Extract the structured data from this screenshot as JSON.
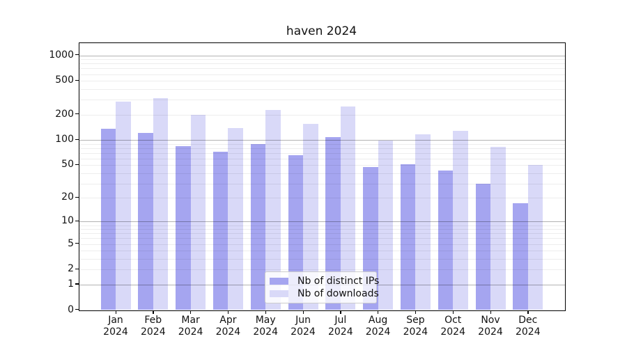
{
  "title": "haven 2024",
  "legend": {
    "items": [
      {
        "label": "Nb of distinct IPs",
        "color": "#a5a5f0"
      },
      {
        "label": "Nb of downloads",
        "color": "#d9d9f8"
      }
    ]
  },
  "chart_data": {
    "type": "bar",
    "title": "haven 2024",
    "categories": [
      "Jan",
      "Feb",
      "Mar",
      "Apr",
      "May",
      "Jun",
      "Jul",
      "Aug",
      "Sep",
      "Oct",
      "Nov",
      "Dec"
    ],
    "year_label": "2024",
    "series": [
      {
        "name": "Nb of distinct IPs",
        "color": "#a5a5f0",
        "values": [
          136,
          120,
          84,
          72,
          89,
          66,
          107,
          47,
          51,
          43,
          30,
          17
        ]
      },
      {
        "name": "Nb of downloads",
        "color": "#d9d9f8",
        "values": [
          282,
          312,
          200,
          138,
          225,
          156,
          249,
          98,
          117,
          129,
          83,
          50
        ]
      }
    ],
    "y_scale": "log1p",
    "ylim": [
      0,
      1000
    ],
    "y_ticks": [
      0,
      1,
      2,
      5,
      10,
      20,
      50,
      100,
      200,
      500,
      1000
    ],
    "y_major_gridlines": [
      1,
      10,
      100,
      1000
    ],
    "y_minor_gridlines": [
      2,
      3,
      4,
      5,
      6,
      7,
      8,
      9,
      20,
      30,
      40,
      50,
      60,
      70,
      80,
      90,
      200,
      300,
      400,
      500,
      600,
      700,
      800,
      900
    ],
    "grid": "both",
    "legend_position": "lower center"
  },
  "colors": {
    "bar_distinct_ips": "#a5a5f0",
    "bar_downloads": "#d9d9f8",
    "grid_major": "#b3b3b3",
    "grid_minor": "#ededed",
    "spine": "#000000",
    "legend_border": "#cccccc",
    "text": "#111111"
  }
}
